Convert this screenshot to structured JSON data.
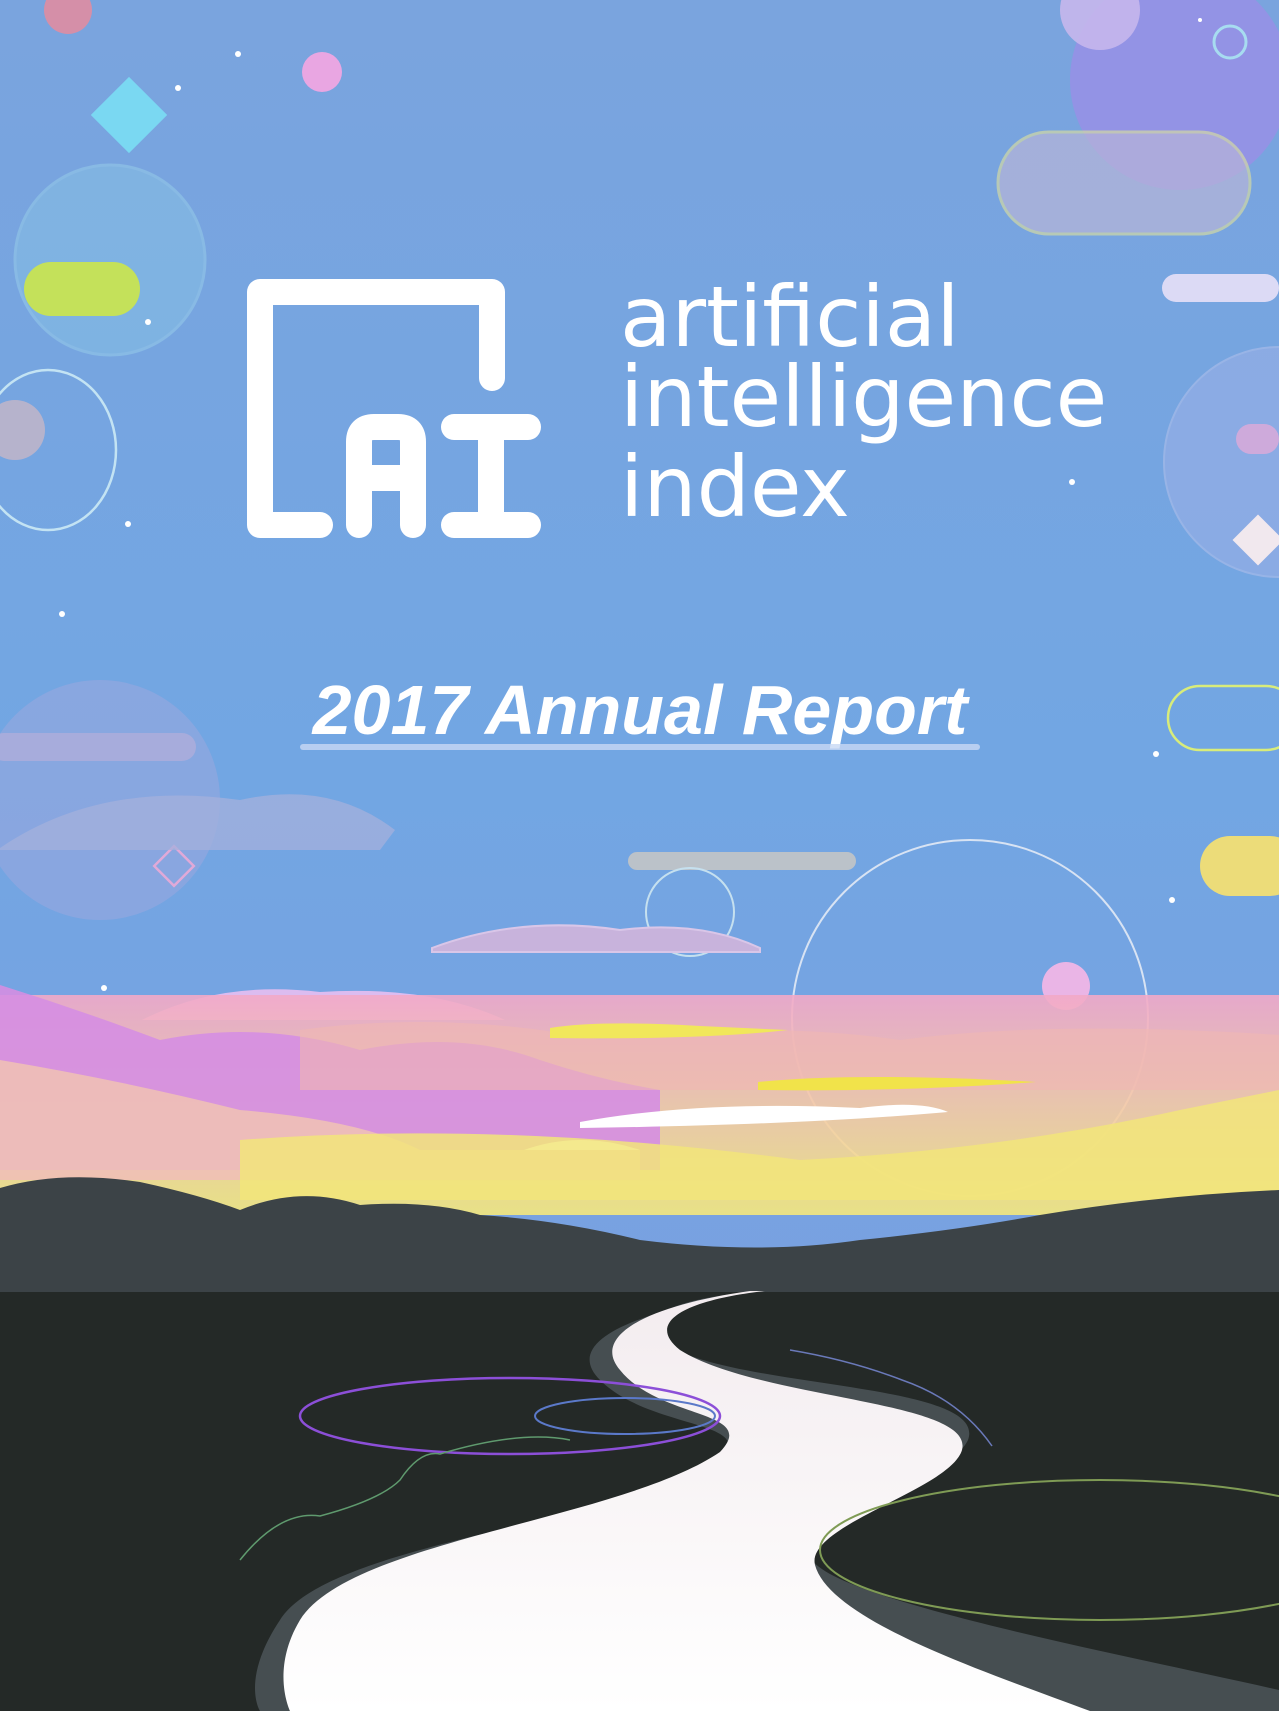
{
  "title": {
    "lines": [
      "artificial",
      "intelligence",
      "index"
    ]
  },
  "subtitle": "2017 Annual Report"
}
